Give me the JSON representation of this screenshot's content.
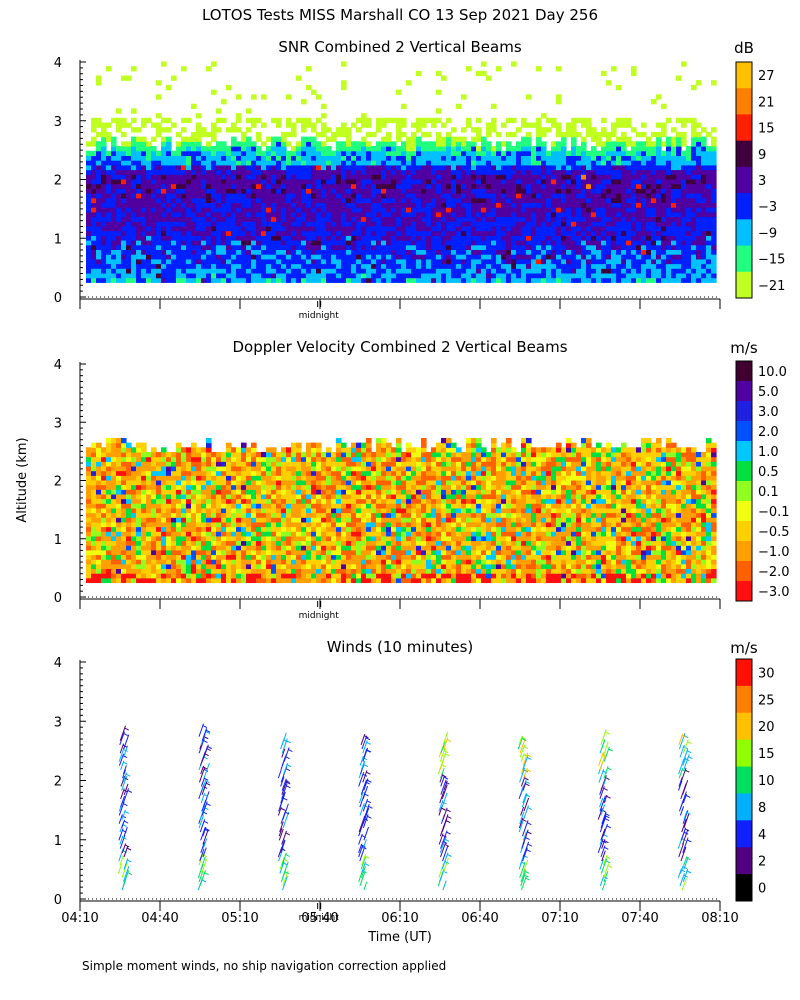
{
  "figure": {
    "title": "LOTOS Tests MISS Marshall CO  13 Sep 2021 Day 256",
    "ylabel": "Altitude (km)",
    "xlabel": "Time (UT)",
    "midnight_label": "midnight",
    "footnote": "Simple moment winds, no ship navigation correction applied"
  },
  "chart_data": [
    {
      "type": "heatmap",
      "title": "SNR Combined 2 Vertical Beams",
      "unit": "dB",
      "ylim": [
        0,
        4
      ],
      "yticks": [
        "0",
        "1",
        "2",
        "3",
        "4"
      ],
      "xlim": [
        "04:10",
        "08:10"
      ],
      "colorbar": {
        "labels": [
          "27",
          "21",
          "15",
          "9",
          "3",
          "−3",
          "−9",
          "−15",
          "−21"
        ],
        "colors": [
          "#ffc000",
          "#ff8000",
          "#ff2000",
          "#400040",
          "#5000a0",
          "#0020ff",
          "#00c0ff",
          "#20ff80",
          "#c0ff20"
        ]
      },
      "data_top_km": 2.6,
      "data_bottom_km": 0.25,
      "profile_by_altitude_km": [
        {
          "alt": 0.25,
          "snr_db": -8
        },
        {
          "alt": 0.6,
          "snr_db": -4
        },
        {
          "alt": 1.0,
          "snr_db": -1
        },
        {
          "alt": 1.5,
          "snr_db": 1
        },
        {
          "alt": 2.0,
          "snr_db": 3
        },
        {
          "alt": 2.4,
          "snr_db": -10
        },
        {
          "alt": 2.6,
          "snr_db": -19
        }
      ]
    },
    {
      "type": "heatmap",
      "title": "Doppler Velocity Combined 2 Vertical Beams",
      "unit": "m/s",
      "ylim": [
        0,
        4
      ],
      "yticks": [
        "0",
        "1",
        "2",
        "3",
        "4"
      ],
      "xlim": [
        "04:10",
        "08:10"
      ],
      "colorbar": {
        "labels": [
          "10.0",
          "5.0",
          "3.0",
          "2.0",
          "1.0",
          "0.5",
          "0.1",
          "−0.1",
          "−0.5",
          "−1.0",
          "−2.0",
          "−3.0"
        ],
        "colors": [
          "#400030",
          "#5000a0",
          "#2020e0",
          "#0050ff",
          "#00c8ff",
          "#00e040",
          "#90ff20",
          "#f0ff10",
          "#ffd000",
          "#ffa000",
          "#ff6000",
          "#ff1010"
        ]
      },
      "data_top_km": 2.6,
      "data_bottom_km": 0.25,
      "typical_velocity_ms": -0.7
    },
    {
      "type": "scatter",
      "title": "Winds (10 minutes)",
      "unit": "m/s",
      "ylim": [
        0,
        4
      ],
      "yticks": [
        "0",
        "1",
        "2",
        "3",
        "4"
      ],
      "xticks": [
        "04:10",
        "04:40",
        "05:10",
        "05:40",
        "06:10",
        "06:40",
        "07:10",
        "07:40",
        "08:10"
      ],
      "colorbar": {
        "labels": [
          "30",
          "25",
          "20",
          "15",
          "10",
          "8",
          "4",
          "2",
          "0"
        ],
        "colors": [
          "#ff1000",
          "#ff8000",
          "#ffc000",
          "#90ff00",
          "#00e060",
          "#00b0ff",
          "#1020ff",
          "#500080",
          "#000000"
        ]
      },
      "profile_times": [
        "04:25",
        "04:55",
        "05:25",
        "05:55",
        "06:25",
        "06:55",
        "07:25",
        "07:55"
      ],
      "top_altitude_km": [
        2.7,
        2.8,
        2.6,
        2.6,
        2.6,
        2.6,
        2.6,
        2.6
      ]
    }
  ]
}
